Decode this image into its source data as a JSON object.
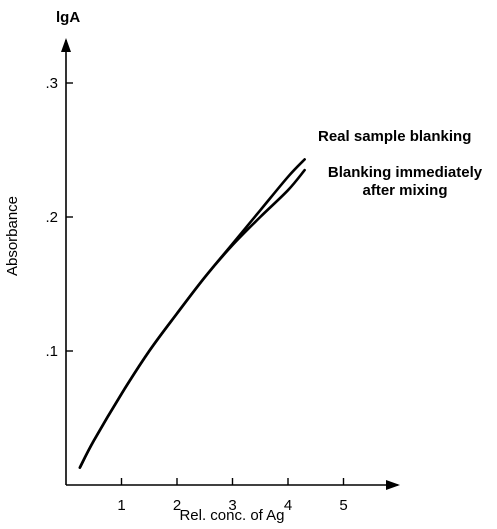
{
  "chart_data": {
    "type": "line",
    "title": "",
    "xlabel": "Rel. conc. of Ag",
    "ylabel": "Absorbance",
    "y_axis_top_label": "lgA",
    "xlim": [
      0,
      5.5
    ],
    "ylim": [
      0,
      0.34
    ],
    "x_ticks": [
      1,
      2,
      3,
      4,
      5
    ],
    "x_tick_labels": [
      "1",
      "2",
      "3",
      "4",
      "5"
    ],
    "y_ticks": [
      0.1,
      0.2,
      0.3
    ],
    "y_tick_labels": [
      ".1",
      ".2",
      ".3"
    ],
    "grid": false,
    "legend": "none",
    "annotations": [
      {
        "lines": [
          "Real sample blanking"
        ],
        "anchor": "start"
      },
      {
        "lines": [
          "Blanking immediately",
          "after mixing"
        ],
        "anchor": "middle"
      }
    ],
    "series": [
      {
        "name": "Real sample blanking",
        "x": [
          0.25,
          0.5,
          1.0,
          1.5,
          2.0,
          2.5,
          3.0,
          3.5,
          4.0,
          4.3
        ],
        "y": [
          0.013,
          0.033,
          0.068,
          0.1,
          0.128,
          0.155,
          0.18,
          0.205,
          0.23,
          0.243
        ]
      },
      {
        "name": "Blanking immediately after mixing",
        "x": [
          0.25,
          0.5,
          1.0,
          1.5,
          2.0,
          2.5,
          3.0,
          3.5,
          4.0,
          4.3
        ],
        "y": [
          0.013,
          0.033,
          0.068,
          0.1,
          0.128,
          0.155,
          0.179,
          0.2,
          0.22,
          0.235
        ]
      }
    ],
    "colors": {
      "line": "#000000",
      "axis": "#000000",
      "text": "#000000"
    }
  }
}
